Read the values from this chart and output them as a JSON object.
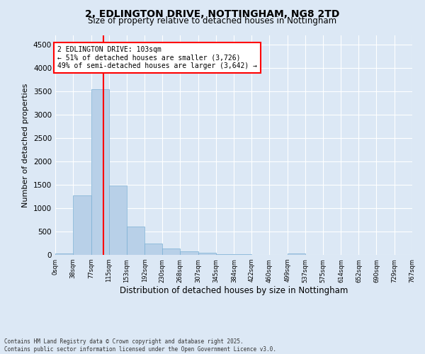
{
  "title": "2, EDLINGTON DRIVE, NOTTINGHAM, NG8 2TD",
  "subtitle": "Size of property relative to detached houses in Nottingham",
  "xlabel": "Distribution of detached houses by size in Nottingham",
  "ylabel": "Number of detached properties",
  "bar_color": "#b8d0e8",
  "bar_edge_color": "#7aafd4",
  "vline_x": 103,
  "vline_color": "red",
  "annotation_line1": "2 EDLINGTON DRIVE: 103sqm",
  "annotation_line2": "← 51% of detached houses are smaller (3,726)",
  "annotation_line3": "49% of semi-detached houses are larger (3,642) →",
  "footer": "Contains HM Land Registry data © Crown copyright and database right 2025.\nContains public sector information licensed under the Open Government Licence v3.0.",
  "bin_edges": [
    0,
    38,
    77,
    115,
    153,
    192,
    230,
    268,
    307,
    345,
    384,
    422,
    460,
    499,
    537,
    575,
    614,
    652,
    690,
    729,
    767
  ],
  "bar_heights": [
    30,
    1280,
    3550,
    1490,
    600,
    250,
    130,
    75,
    40,
    20,
    10,
    5,
    0,
    30,
    0,
    0,
    0,
    0,
    0,
    0
  ],
  "ylim": [
    0,
    4700
  ],
  "yticks": [
    0,
    500,
    1000,
    1500,
    2000,
    2500,
    3000,
    3500,
    4000,
    4500
  ],
  "background_color": "#dce8f5",
  "plot_bg_color": "#dce8f5",
  "figsize": [
    6.0,
    5.0
  ],
  "dpi": 100
}
